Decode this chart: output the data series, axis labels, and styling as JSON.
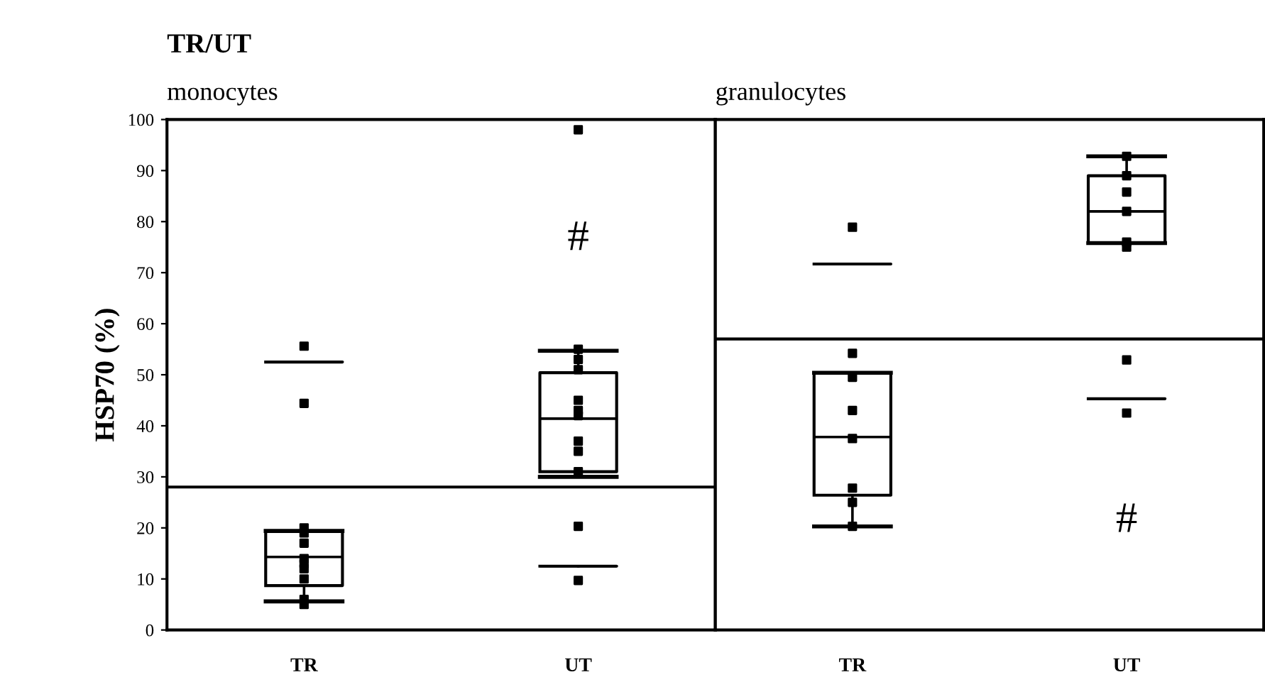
{
  "chart_data": [
    {
      "type": "box",
      "title": "TR/UT",
      "subtitle": "monocytes",
      "ylabel": "HSP70 (%)",
      "categories": [
        "TR",
        "UT"
      ],
      "ylim": [
        0,
        100
      ],
      "yticks": [
        0,
        10,
        20,
        30,
        40,
        50,
        60,
        70,
        80,
        90,
        100
      ],
      "grid": false,
      "legend": false,
      "series": [
        {
          "type": "box",
          "color": "#000000",
          "boxes": [
            {
              "low": 5.6,
              "q1": 8.7,
              "median": 14.3,
              "q3": 19.4,
              "high": 19.4
            },
            {
              "low": 30,
              "q1": 31,
              "median": 41.4,
              "q3": 50.4,
              "high": 54.7
            }
          ]
        },
        {
          "type": "box",
          "color": "#000000",
          "boxes": [
            {
              "low": 52.5,
              "q1": 52.5,
              "median": 52.5,
              "q3": 52.5,
              "high": 52.5
            },
            {
              "low": 12.5,
              "q1": 12.5,
              "median": 12.5,
              "q3": 12.5,
              "high": 12.5
            }
          ]
        },
        {
          "type": "scatter",
          "color": "#000000",
          "marker": "square",
          "x": [
            "TR",
            "TR",
            "TR",
            "TR",
            "TR",
            "TR",
            "TR",
            "TR",
            "TR",
            "TR",
            "TR",
            "UT",
            "UT",
            "UT",
            "UT",
            "UT",
            "UT",
            "UT",
            "UT",
            "UT",
            "UT",
            "UT",
            "UT"
          ],
          "values": [
            5,
            6,
            10,
            12,
            13,
            14,
            17,
            19,
            20,
            55.6,
            44.4,
            98,
            55,
            53,
            51,
            45,
            43,
            42,
            37,
            35,
            31,
            20.3,
            9.7
          ]
        }
      ],
      "ref_lines": [
        {
          "axis": "y",
          "value": 28,
          "color": "#000000"
        }
      ],
      "annotations": [
        "#"
      ]
    },
    {
      "type": "box",
      "subtitle": "granulocytes",
      "categories": [
        "TR",
        "UT"
      ],
      "ylim": [
        0,
        100
      ],
      "tick_labels": "x",
      "grid": false,
      "legend": false,
      "series": [
        {
          "type": "box",
          "color": "#000000",
          "boxes": [
            {
              "low": 20.3,
              "q1": 26.4,
              "median": 37.8,
              "q3": 50.4,
              "high": 50.4
            },
            {
              "low": 75.8,
              "q1": 75.8,
              "median": 82,
              "q3": 89,
              "high": 92.8
            }
          ]
        },
        {
          "type": "box",
          "color": "#000000",
          "boxes": [
            {
              "low": 71.7,
              "q1": 71.7,
              "median": 71.7,
              "q3": 71.7,
              "high": 71.7
            },
            {
              "low": 45.3,
              "q1": 45.3,
              "median": 45.3,
              "q3": 45.3,
              "high": 45.3
            }
          ]
        },
        {
          "type": "scatter",
          "color": "#000000",
          "marker": "square",
          "x": [
            "TR",
            "TR",
            "TR",
            "TR",
            "TR",
            "TR",
            "TR",
            "TR",
            "UT",
            "UT",
            "UT",
            "UT",
            "UT",
            "UT",
            "UT",
            "UT"
          ],
          "values": [
            78.9,
            54.2,
            49.5,
            43,
            37.5,
            27.8,
            25,
            20.3,
            92.8,
            89,
            85.8,
            82,
            76,
            75,
            52.9,
            42.5
          ]
        }
      ],
      "ref_lines": [
        {
          "axis": "y",
          "value": 57,
          "color": "#000000"
        }
      ],
      "annotations": [
        "#"
      ]
    }
  ]
}
